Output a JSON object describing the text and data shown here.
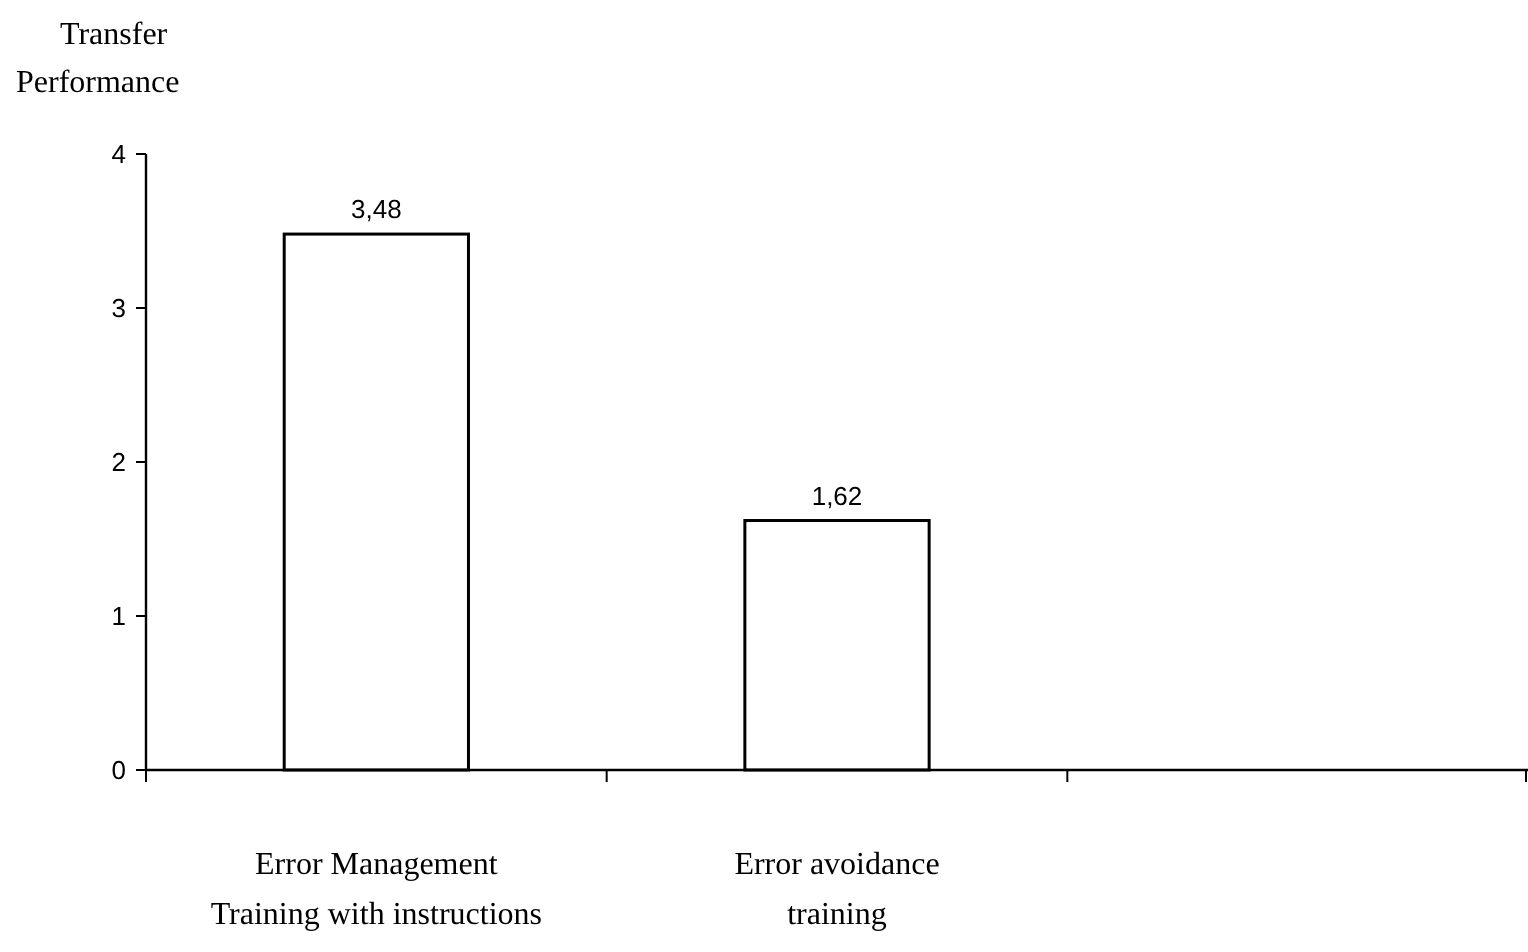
{
  "chart_data": {
    "type": "bar",
    "ylabel": "Transfer Performance",
    "categories": [
      "Error Management Training with instructions",
      "Error avoidance training",
      null
    ],
    "values": [
      3.48,
      1.62,
      null
    ],
    "value_labels": [
      "3,48",
      "1,62",
      null
    ],
    "color": "#ffffff",
    "ylim": [
      0,
      4
    ],
    "yticks": [
      0,
      1,
      2,
      3,
      4
    ],
    "grid": false
  }
}
